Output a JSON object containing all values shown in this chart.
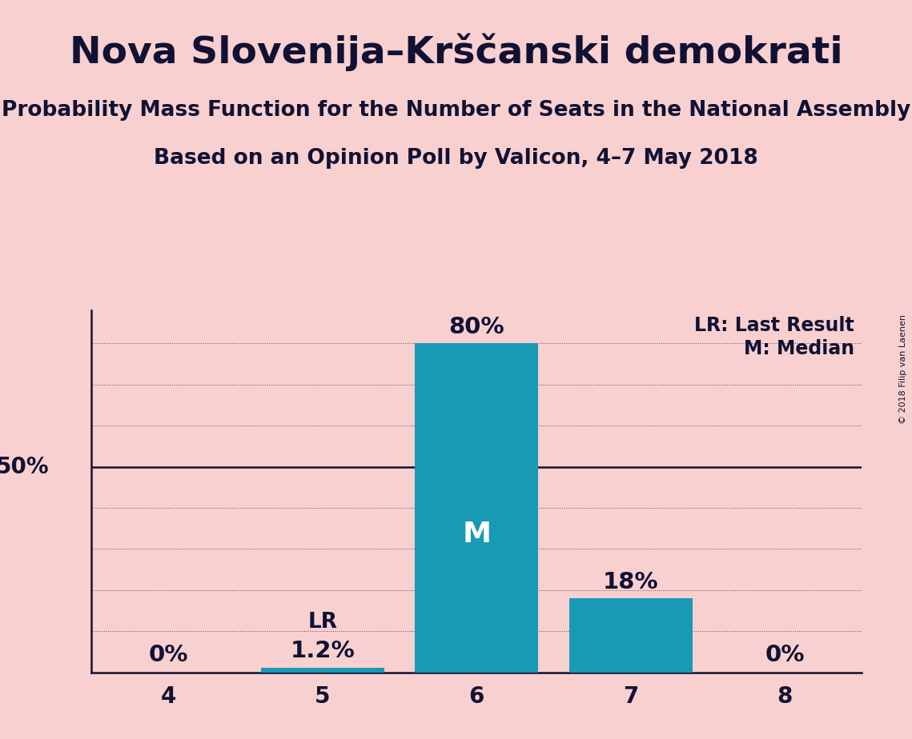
{
  "title": "Nova Slovenija–Krščanski demokrati",
  "subtitle1": "Probability Mass Function for the Number of Seats in the National Assembly",
  "subtitle2": "Based on an Opinion Poll by Valicon, 4–7 May 2018",
  "copyright": "© 2018 Filip van Laenen",
  "categories": [
    4,
    5,
    6,
    7,
    8
  ],
  "values": [
    0.0,
    1.2,
    80.0,
    18.0,
    0.0
  ],
  "bar_color": "#1899b4",
  "background_color": "#f9d0d0",
  "bar_labels": [
    "0%",
    "1.2%",
    "80%",
    "18%",
    "0%"
  ],
  "median_bar": 6,
  "last_result_bar": 5,
  "median_label": "M",
  "lr_label": "LR",
  "legend_lr": "LR: Last Result",
  "legend_m": "M: Median",
  "ylim": [
    0,
    88
  ],
  "ytick_50_label": "50%",
  "title_fontsize": 34,
  "subtitle_fontsize": 19,
  "text_color": "#111133",
  "axis_label_fontsize": 20,
  "bar_label_fontsize": 21,
  "legend_fontsize": 17,
  "median_label_fontsize": 26,
  "lr_label_fontsize": 19
}
